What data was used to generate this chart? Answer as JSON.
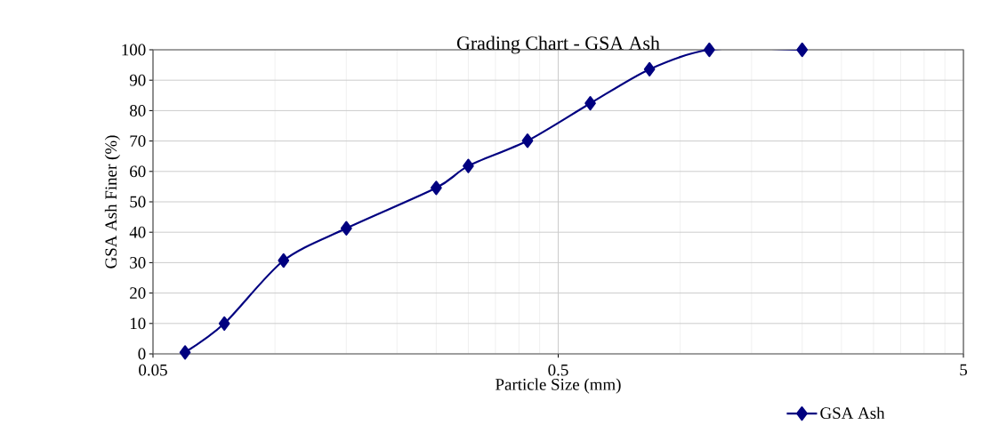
{
  "chart_data": {
    "type": "line",
    "title": "Grading Chart - GSA Ash",
    "xlabel": "Particle Size (mm)",
    "ylabel": "GSA Ash Finer (%)",
    "log": "x",
    "xlim": [
      0.05,
      5
    ],
    "ylim": [
      0,
      100
    ],
    "xticks": [
      0.05,
      0.5,
      5
    ],
    "yticks": [
      0,
      10,
      20,
      30,
      40,
      50,
      60,
      70,
      80,
      90,
      100
    ],
    "grid": true,
    "legend": "bottom right",
    "marker": "diamond",
    "line_style": "solid",
    "series": [
      {
        "name": "GSA Ash",
        "color": "#000080",
        "x": [
          0.06,
          0.075,
          0.105,
          0.15,
          0.25,
          0.3,
          0.42,
          0.6,
          0.84,
          1.18,
          2.0
        ],
        "values": [
          0.5,
          10,
          30.7,
          41.3,
          54.6,
          61.8,
          70.1,
          82.4,
          93.6,
          100,
          100
        ]
      }
    ]
  }
}
